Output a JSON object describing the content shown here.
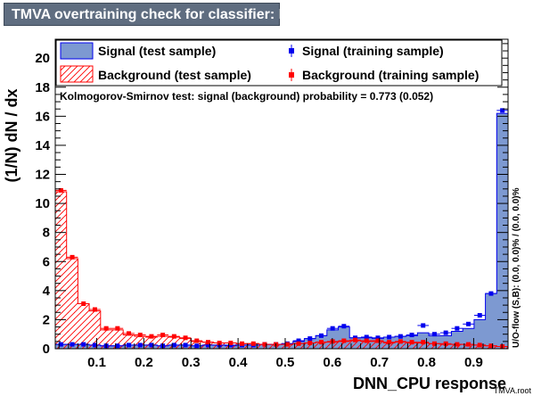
{
  "title": "TMVA overtraining check for classifier: DNN_CPU",
  "ks_text": "Kolmogorov-Smirnov test: signal (background) probability = 0.773 (0.052)",
  "side_label": "U/O-flow (S,B): (0.0, 0.0)% / (0.0, 0.0)%",
  "footer": "TMVA.root",
  "colors": {
    "signal_fill": "#7d99d1",
    "signal_line": "#0000ee",
    "background_hatch": "#ff0000",
    "background_points": "#ff0000",
    "title_bg": "#5f6d80"
  },
  "legend": {
    "signal_test": "Signal (test sample)",
    "signal_train": "Signal (training sample)",
    "background_test": "Background (test sample)",
    "background_train": "Background (training sample)"
  },
  "chart_data": {
    "type": "histogram",
    "xlabel": "DNN_CPU response",
    "ylabel": "(1/N) dN / dx",
    "xlim": [
      0.012,
      0.973
    ],
    "ylim": [
      0,
      21.3
    ],
    "xticks": [
      0.1,
      0.2,
      0.3,
      0.4,
      0.5,
      0.6,
      0.7,
      0.8,
      0.9
    ],
    "yticks": [
      0,
      2,
      4,
      6,
      8,
      10,
      12,
      14,
      16,
      18,
      20
    ],
    "nbins": 40,
    "series": [
      {
        "name": "Signal (test sample)",
        "style": "filled-histogram",
        "values": [
          0.3,
          0.3,
          0.3,
          0.25,
          0.2,
          0.2,
          0.25,
          0.25,
          0.25,
          0.2,
          0.25,
          0.25,
          0.2,
          0.25,
          0.25,
          0.2,
          0.25,
          0.25,
          0.3,
          0.3,
          0.35,
          0.5,
          0.7,
          0.9,
          1.3,
          1.5,
          0.75,
          0.75,
          0.7,
          0.8,
          0.85,
          0.9,
          1.1,
          0.9,
          0.9,
          1.2,
          1.4,
          2.0,
          3.8,
          16.2
        ]
      },
      {
        "name": "Signal (training sample)",
        "style": "points",
        "values": [
          0.3,
          0.3,
          0.3,
          0.25,
          0.2,
          0.2,
          0.25,
          0.25,
          0.25,
          0.2,
          0.25,
          0.25,
          0.2,
          0.25,
          0.25,
          0.25,
          0.25,
          0.25,
          0.3,
          0.3,
          0.35,
          0.55,
          0.7,
          0.9,
          1.4,
          1.55,
          0.75,
          0.8,
          0.75,
          0.8,
          0.85,
          0.95,
          1.6,
          1.0,
          1.1,
          1.4,
          1.7,
          2.3,
          3.8,
          16.4
        ]
      },
      {
        "name": "Background (test sample)",
        "style": "hatched-histogram",
        "values": [
          10.8,
          6.2,
          3.1,
          2.6,
          1.3,
          1.3,
          0.95,
          0.85,
          0.8,
          0.85,
          0.8,
          0.7,
          0.5,
          0.45,
          0.4,
          0.4,
          0.35,
          0.35,
          0.3,
          0.3,
          0.3,
          0.35,
          0.4,
          0.45,
          0.45,
          0.5,
          0.55,
          0.5,
          0.5,
          0.4,
          0.45,
          0.4,
          0.4,
          0.35,
          0.3,
          0.3,
          0.3,
          0.25,
          0.2,
          0.15
        ]
      },
      {
        "name": "Background (training sample)",
        "style": "points",
        "values": [
          10.9,
          6.3,
          3.1,
          2.7,
          1.4,
          1.4,
          1.05,
          0.95,
          0.85,
          0.95,
          0.85,
          0.75,
          0.55,
          0.45,
          0.4,
          0.4,
          0.35,
          0.35,
          0.3,
          0.3,
          0.3,
          0.35,
          0.4,
          0.45,
          0.5,
          0.55,
          0.6,
          0.55,
          0.55,
          0.45,
          0.5,
          0.45,
          0.45,
          0.35,
          0.35,
          0.3,
          0.3,
          0.25,
          0.2,
          0.15
        ]
      }
    ]
  }
}
